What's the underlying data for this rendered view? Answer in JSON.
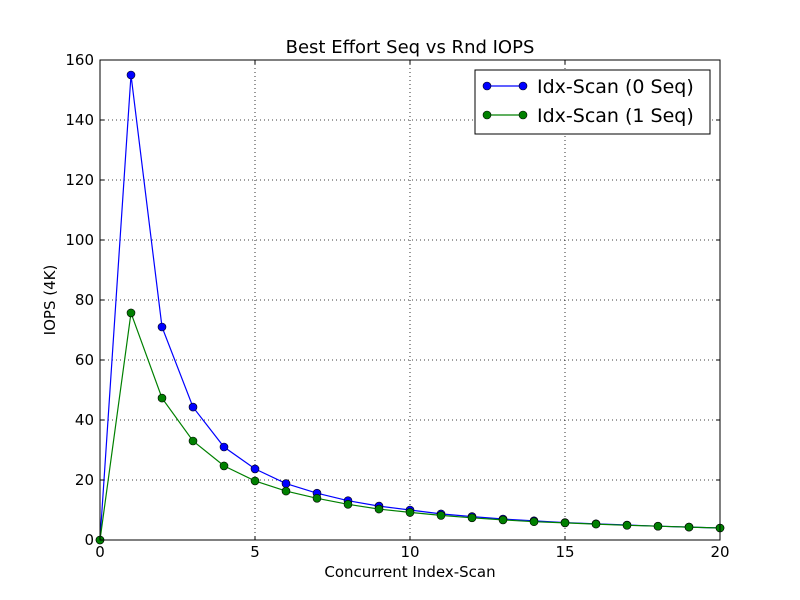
{
  "chart_data": {
    "type": "line",
    "title": "Best Effort Seq vs Rnd IOPS",
    "xlabel": "Concurrent Index-Scan",
    "ylabel": "IOPS (4K)",
    "xlim": [
      0,
      20
    ],
    "ylim": [
      0,
      160
    ],
    "xticks": [
      0,
      5,
      10,
      15,
      20
    ],
    "yticks": [
      0,
      20,
      40,
      60,
      80,
      100,
      120,
      140,
      160
    ],
    "grid": true,
    "legend_position": "top-right",
    "x": [
      0,
      1,
      2,
      3,
      4,
      5,
      6,
      7,
      8,
      9,
      10,
      11,
      12,
      13,
      14,
      15,
      16,
      17,
      18,
      19,
      20
    ],
    "series": [
      {
        "name": "Idx-Scan (0 Seq)",
        "color": "#0000ff",
        "values": [
          0,
          155,
          71,
          44.3,
          31,
          23.7,
          18.8,
          15.6,
          13.1,
          11.3,
          10,
          8.7,
          7.8,
          7,
          6.4,
          5.8,
          5.4,
          5,
          4.6,
          4.3,
          4
        ]
      },
      {
        "name": "Idx-Scan (1 Seq)",
        "color": "#008000",
        "values": [
          0,
          75.7,
          47.3,
          33,
          24.7,
          19.7,
          16.3,
          13.9,
          11.9,
          10.3,
          9.2,
          8.2,
          7.4,
          6.7,
          6.1,
          5.7,
          5.3,
          4.9,
          4.6,
          4.3,
          4
        ]
      }
    ]
  }
}
